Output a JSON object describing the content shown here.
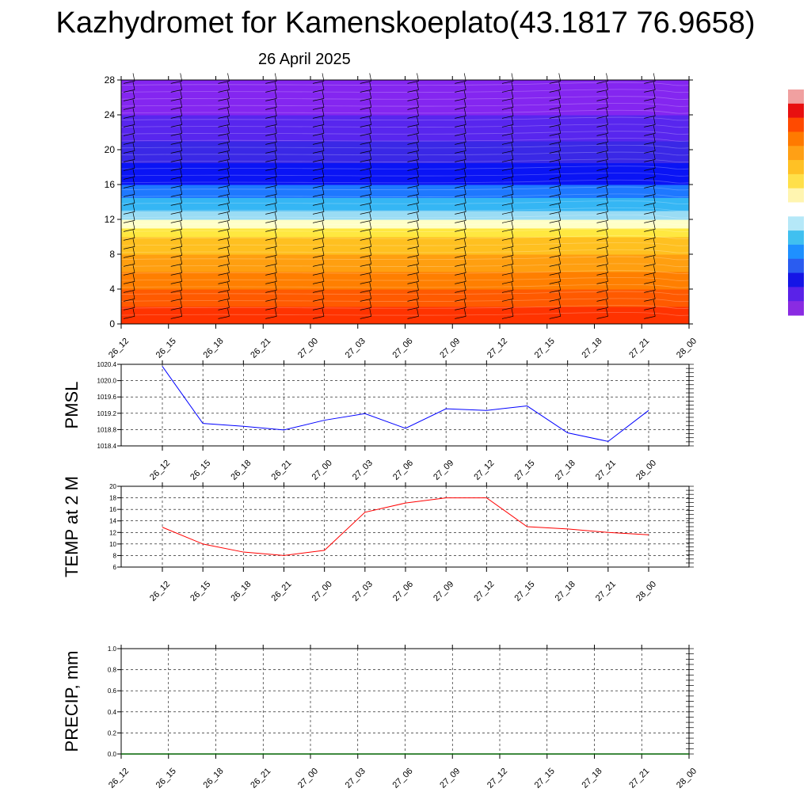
{
  "title": "Kazhydromet for Kamenskoeplato(43.1817 76.9658)",
  "subtitle": "26 April 2025",
  "chart_data": [
    {
      "type": "heatmap",
      "name": "wind-temperature-cross-section",
      "y_ticks": [
        "0",
        "4",
        "8",
        "12",
        "16",
        "20",
        "24",
        "28"
      ],
      "ylim": [
        0,
        28
      ],
      "x_ticks": [
        "26_12",
        "26_15",
        "26_18",
        "26_21",
        "27_00",
        "27_03",
        "27_06",
        "27_09",
        "27_12",
        "27_15",
        "27_18",
        "27_21",
        "28_00"
      ],
      "bands": [
        {
          "from": 0,
          "to": 2,
          "color": "#ff3300"
        },
        {
          "from": 2,
          "to": 4,
          "color": "#ff5a00"
        },
        {
          "from": 4,
          "to": 6,
          "color": "#ff7f00"
        },
        {
          "from": 6,
          "to": 8,
          "color": "#ff9f10"
        },
        {
          "from": 8,
          "to": 10,
          "color": "#ffc020"
        },
        {
          "from": 10,
          "to": 11,
          "color": "#ffe840"
        },
        {
          "from": 11,
          "to": 12,
          "color": "#ffffc8"
        },
        {
          "from": 12,
          "to": 13,
          "color": "#9adcf4"
        },
        {
          "from": 13,
          "to": 14.5,
          "color": "#35b6f4"
        },
        {
          "from": 14.5,
          "to": 16,
          "color": "#1e78ff"
        },
        {
          "from": 16,
          "to": 18.5,
          "color": "#0a14f5"
        },
        {
          "from": 18.5,
          "to": 21,
          "color": "#3a28e6"
        },
        {
          "from": 21,
          "to": 24,
          "color": "#5826ee"
        },
        {
          "from": 24,
          "to": 28,
          "color": "#8426f0"
        }
      ],
      "colorbar": [
        "#8a2be2",
        "#5a22e8",
        "#1515e6",
        "#2a5cf0",
        "#1e90ff",
        "#40c0f0",
        "#b5e8f8",
        "#ffffff",
        "#fff5b0",
        "#ffe04a",
        "#ffc125",
        "#ffa015",
        "#ff7a00",
        "#ff4a00",
        "#e81010",
        "#f0a0a0"
      ]
    },
    {
      "type": "line",
      "name": "pmsl",
      "ylabel": "PMSL",
      "y_ticks": [
        "1018.4",
        "1018.8",
        "1019.2",
        "1019.6",
        "1020.0",
        "1020.4"
      ],
      "ylim": [
        1018.4,
        1020.4
      ],
      "categories": [
        "26_12",
        "26_15",
        "26_18",
        "26_21",
        "27_00",
        "27_03",
        "27_06",
        "27_09",
        "27_12",
        "27_15",
        "27_18",
        "27_21",
        "28_00"
      ],
      "values": [
        1020.35,
        1018.95,
        1018.88,
        1018.79,
        1019.03,
        1019.19,
        1018.83,
        1019.31,
        1019.27,
        1019.38,
        1018.72,
        1018.51,
        1019.27
      ],
      "color": "#0000ff"
    },
    {
      "type": "line",
      "name": "temperature",
      "ylabel": "TEMP at 2 M",
      "y_ticks": [
        "6",
        "8",
        "10",
        "12",
        "14",
        "16",
        "18",
        "20"
      ],
      "ylim": [
        6,
        20
      ],
      "categories": [
        "26_12",
        "26_15",
        "26_18",
        "26_21",
        "27_00",
        "27_03",
        "27_06",
        "27_09",
        "27_12",
        "27_15",
        "27_18",
        "27_21",
        "28_00"
      ],
      "values": [
        12.9,
        10.0,
        8.6,
        8.0,
        8.9,
        15.5,
        17.1,
        18.0,
        18.0,
        13.0,
        12.6,
        12.0,
        11.6
      ],
      "color": "#ff0000"
    },
    {
      "type": "line",
      "name": "precipitation",
      "ylabel": "PRECIP, mm",
      "y_ticks": [
        "0.0",
        "0.2",
        "0.4",
        "0.6",
        "0.8",
        "1.0"
      ],
      "ylim": [
        0,
        1
      ],
      "x_ticks": [
        "26_12",
        "26_15",
        "26_18",
        "26_21",
        "27_00",
        "27_03",
        "27_06",
        "27_09",
        "27_12",
        "27_15",
        "27_18",
        "27_21",
        "28_00"
      ],
      "values": [
        0,
        0,
        0,
        0,
        0,
        0,
        0,
        0,
        0,
        0,
        0,
        0,
        0
      ],
      "color": "#006400"
    }
  ]
}
